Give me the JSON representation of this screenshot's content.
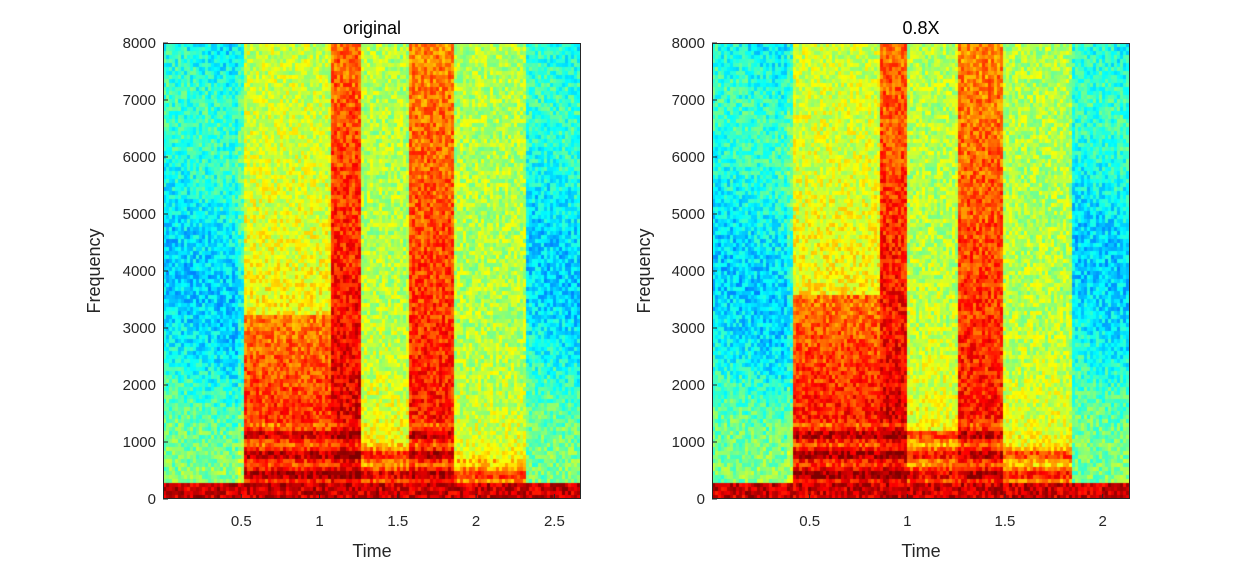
{
  "chart_data": [
    {
      "type": "heatmap",
      "title": "original",
      "xlabel": "Time",
      "ylabel": "Frequency",
      "xlim": [
        0,
        2.67
      ],
      "ylim": [
        0,
        8000
      ],
      "xticks": [
        0.5,
        1,
        1.5,
        2,
        2.5
      ],
      "xtick_labels": [
        "0.5",
        "1",
        "1.5",
        "2",
        "2.5"
      ],
      "yticks": [
        0,
        1000,
        2000,
        3000,
        4000,
        5000,
        6000,
        7000,
        8000
      ],
      "ytick_labels": [
        "0",
        "1000",
        "2000",
        "3000",
        "4000",
        "5000",
        "6000",
        "7000",
        "8000"
      ],
      "colormap": "jet",
      "speech_segments": [
        {
          "start": 0.52,
          "end": 1.07,
          "max_freq": 3200,
          "energy": 0.85
        },
        {
          "start": 1.07,
          "end": 1.25,
          "max_freq": 8000,
          "energy": 0.95
        },
        {
          "start": 1.25,
          "end": 1.57,
          "max_freq": 1000,
          "energy": 0.8
        },
        {
          "start": 1.57,
          "end": 1.85,
          "max_freq": 8000,
          "energy": 0.8
        },
        {
          "start": 1.85,
          "end": 2.3,
          "max_freq": 700,
          "energy": 0.65
        }
      ]
    },
    {
      "type": "heatmap",
      "title": "0.8X",
      "xlabel": "Time",
      "ylabel": "Frequency",
      "xlim": [
        0,
        2.14
      ],
      "ylim": [
        0,
        8000
      ],
      "xticks": [
        0.5,
        1,
        1.5,
        2
      ],
      "xtick_labels": [
        "0.5",
        "1",
        "1.5",
        "2"
      ],
      "yticks": [
        0,
        1000,
        2000,
        3000,
        4000,
        5000,
        6000,
        7000,
        8000
      ],
      "ytick_labels": [
        "0",
        "1000",
        "2000",
        "3000",
        "4000",
        "5000",
        "6000",
        "7000",
        "8000"
      ],
      "colormap": "jet",
      "speech_segments": [
        {
          "start": 0.42,
          "end": 0.86,
          "max_freq": 3600,
          "energy": 0.9
        },
        {
          "start": 0.86,
          "end": 1.0,
          "max_freq": 8000,
          "energy": 0.95
        },
        {
          "start": 1.0,
          "end": 1.25,
          "max_freq": 1200,
          "energy": 0.8
        },
        {
          "start": 1.25,
          "end": 1.48,
          "max_freq": 8000,
          "energy": 0.8
        },
        {
          "start": 1.48,
          "end": 1.84,
          "max_freq": 900,
          "energy": 0.65
        }
      ]
    }
  ]
}
